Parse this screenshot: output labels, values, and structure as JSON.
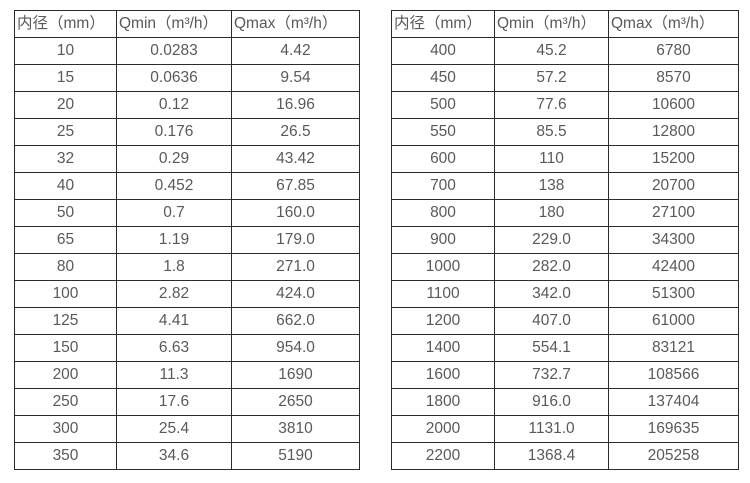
{
  "colors": {
    "background": "#ffffff",
    "border": "#2b2b2b",
    "text": "#595959"
  },
  "tables": [
    {
      "name": "flow-table-small-diameters",
      "headers": [
        "内径（mm）",
        "Qmin（m³/h）",
        "Qmax（m³/h）"
      ],
      "rows": [
        [
          "10",
          "0.0283",
          "4.42"
        ],
        [
          "15",
          "0.0636",
          "9.54"
        ],
        [
          "20",
          "0.12",
          "16.96"
        ],
        [
          "25",
          "0.176",
          "26.5"
        ],
        [
          "32",
          "0.29",
          "43.42"
        ],
        [
          "40",
          "0.452",
          "67.85"
        ],
        [
          "50",
          "0.7",
          "160.0"
        ],
        [
          "65",
          "1.19",
          "179.0"
        ],
        [
          "80",
          "1.8",
          "271.0"
        ],
        [
          "100",
          "2.82",
          "424.0"
        ],
        [
          "125",
          "4.41",
          "662.0"
        ],
        [
          "150",
          "6.63",
          "954.0"
        ],
        [
          "200",
          "11.3",
          "1690"
        ],
        [
          "250",
          "17.6",
          "2650"
        ],
        [
          "300",
          "25.4",
          "3810"
        ],
        [
          "350",
          "34.6",
          "5190"
        ]
      ]
    },
    {
      "name": "flow-table-large-diameters",
      "headers": [
        "内径（mm）",
        "Qmin（m³/h）",
        "Qmax（m³/h）"
      ],
      "rows": [
        [
          "400",
          "45.2",
          "6780"
        ],
        [
          "450",
          "57.2",
          "8570"
        ],
        [
          "500",
          "77.6",
          "10600"
        ],
        [
          "550",
          "85.5",
          "12800"
        ],
        [
          "600",
          "110",
          "15200"
        ],
        [
          "700",
          "138",
          "20700"
        ],
        [
          "800",
          "180",
          "27100"
        ],
        [
          "900",
          "229.0",
          "34300"
        ],
        [
          "1000",
          "282.0",
          "42400"
        ],
        [
          "1100",
          "342.0",
          "51300"
        ],
        [
          "1200",
          "407.0",
          "61000"
        ],
        [
          "1400",
          "554.1",
          "83121"
        ],
        [
          "1600",
          "732.7",
          "108566"
        ],
        [
          "1800",
          "916.0",
          "137404"
        ],
        [
          "2000",
          "1131.0",
          "169635"
        ],
        [
          "2200",
          "1368.4",
          "205258"
        ]
      ]
    }
  ]
}
